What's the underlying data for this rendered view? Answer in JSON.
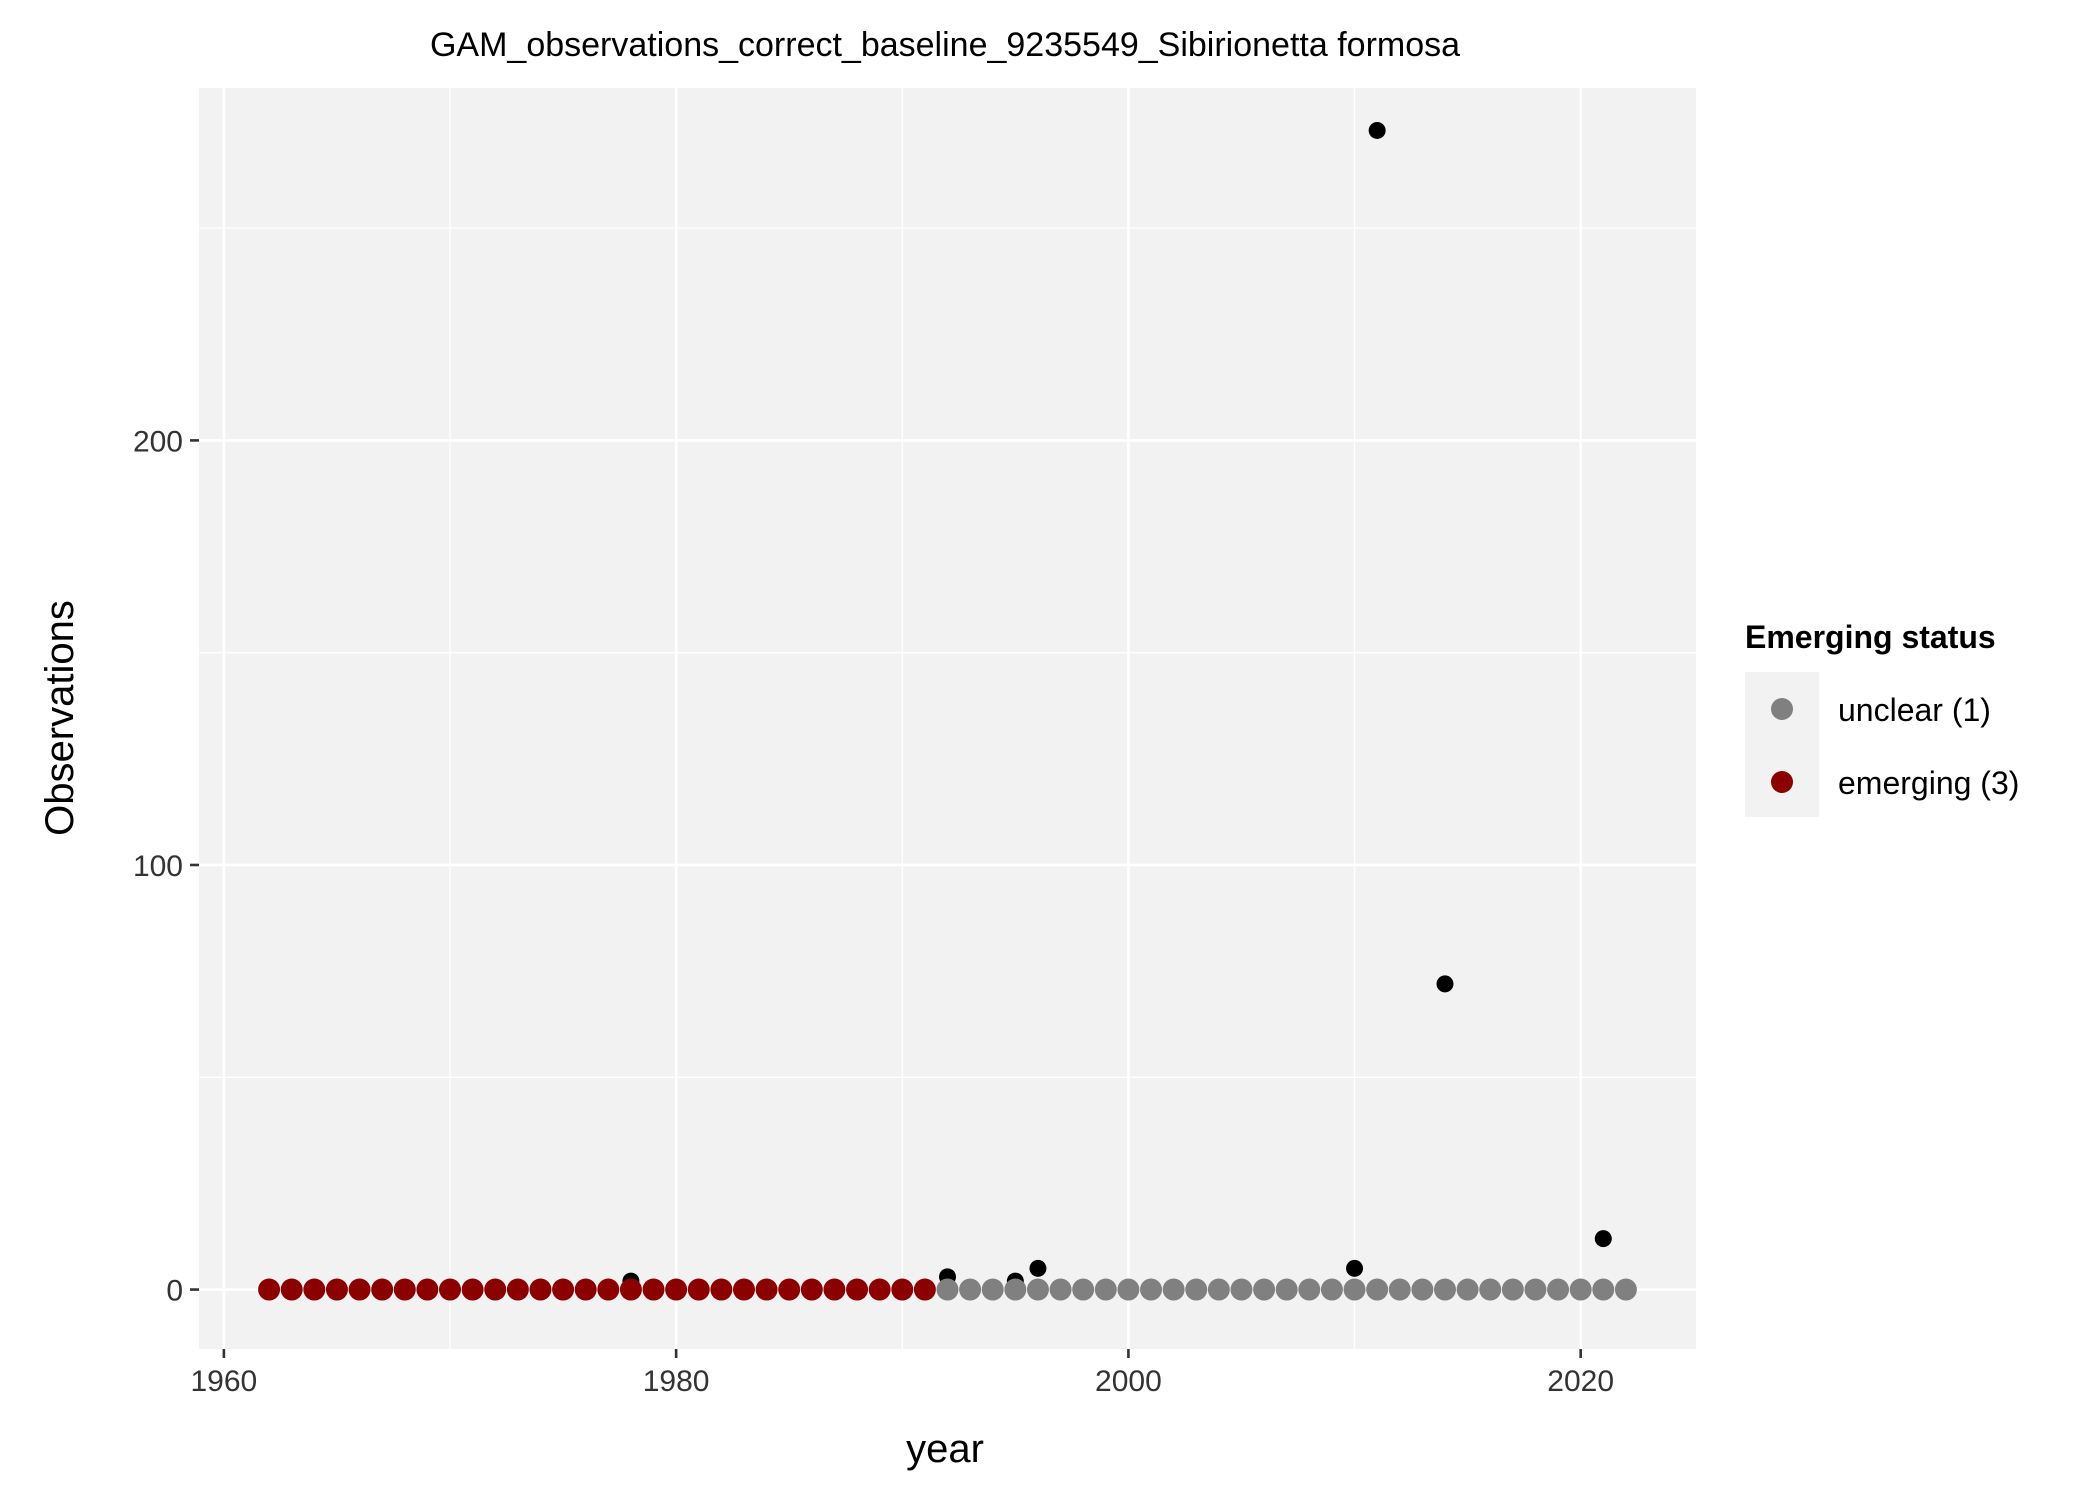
{
  "chart_data": {
    "type": "scatter",
    "title": "GAM_observations_correct_baseline_9235549_Sibirionetta formosa",
    "xlabel": "year",
    "ylabel": "Observations",
    "xlim": [
      1958.9,
      2025.1
    ],
    "ylim": [
      -14,
      283
    ],
    "x_ticks": [
      1960,
      1980,
      2000,
      2020
    ],
    "y_ticks": [
      0,
      100,
      200
    ],
    "grid": true,
    "legend": {
      "title": "Emerging status",
      "position": "right",
      "entries": [
        {
          "label": "unclear (1)",
          "color": "#808080"
        },
        {
          "label": "emerging (3)",
          "color": "#8b0000"
        }
      ]
    },
    "colors": {
      "panel": "#f2f2f2",
      "grid": "#ffffff",
      "observed": "#000000",
      "unclear": "#808080",
      "emerging": "#8b0000"
    },
    "series": [
      {
        "role": "observed",
        "points": [
          [
            1962,
            0
          ],
          [
            1978,
            2
          ],
          [
            1992,
            3
          ],
          [
            1995,
            2
          ],
          [
            1996,
            5
          ],
          [
            2010,
            5
          ],
          [
            2011,
            273
          ],
          [
            2014,
            72
          ],
          [
            2021,
            12
          ]
        ]
      },
      {
        "role": "emerging",
        "x": [
          1962,
          1963,
          1964,
          1965,
          1966,
          1967,
          1968,
          1969,
          1970,
          1971,
          1972,
          1973,
          1974,
          1975,
          1976,
          1977,
          1978,
          1979,
          1980,
          1981,
          1982,
          1983,
          1984,
          1985,
          1986,
          1987,
          1988,
          1989,
          1990,
          1991
        ],
        "y": 0
      },
      {
        "role": "unclear",
        "x": [
          1992,
          1993,
          1994,
          1995,
          1996,
          1997,
          1998,
          1999,
          2000,
          2001,
          2002,
          2003,
          2004,
          2005,
          2006,
          2007,
          2008,
          2009,
          2010,
          2011,
          2012,
          2013,
          2014,
          2015,
          2016,
          2017,
          2018,
          2019,
          2020,
          2021,
          2022
        ],
        "y": 0
      }
    ]
  }
}
